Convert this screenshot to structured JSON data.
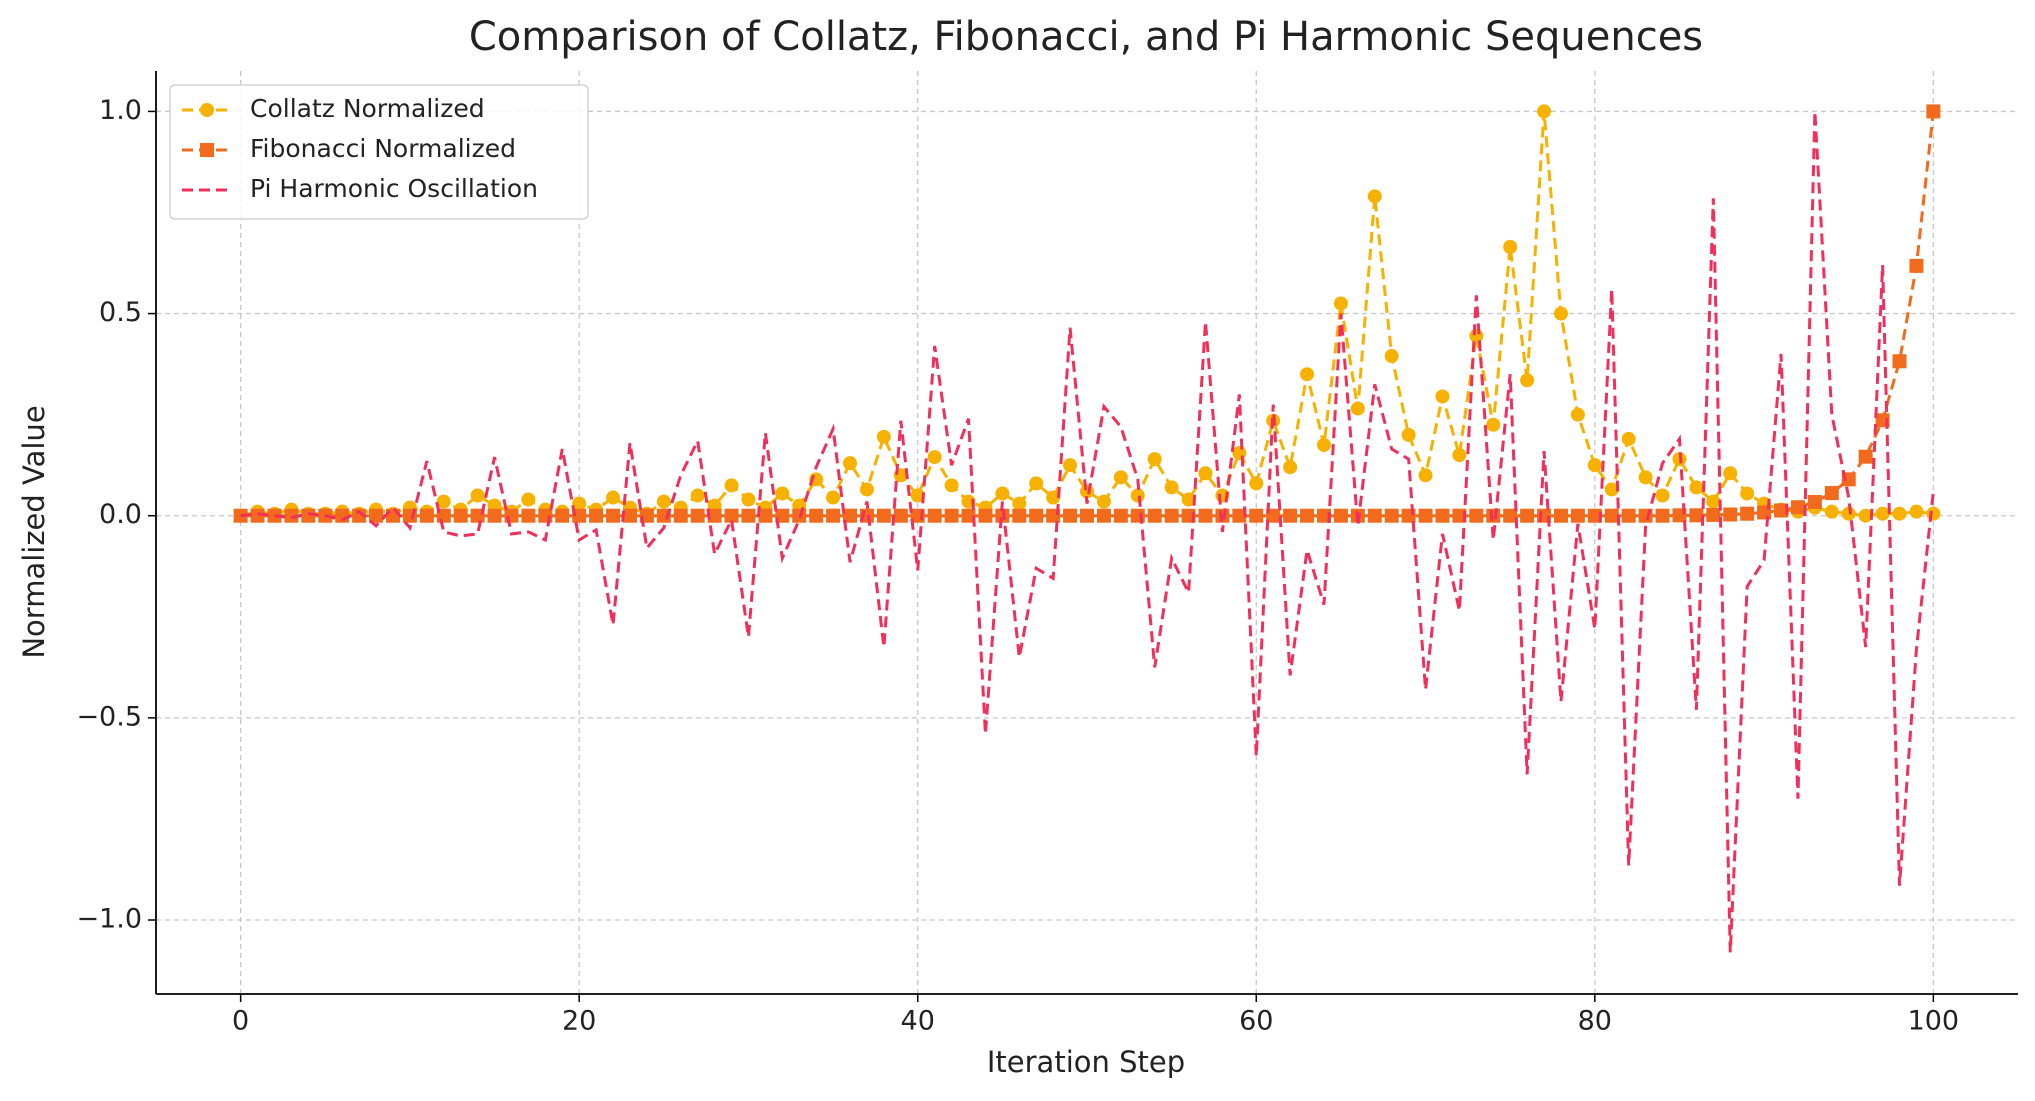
{
  "chart_data": {
    "type": "line",
    "title": "Comparison of Collatz, Fibonacci, and Pi Harmonic Sequences",
    "x_label": "Iteration Step",
    "y_label": "Normalized Value",
    "x": [
      0,
      1,
      2,
      3,
      4,
      5,
      6,
      7,
      8,
      9,
      10,
      11,
      12,
      13,
      14,
      15,
      16,
      17,
      18,
      19,
      20,
      21,
      22,
      23,
      24,
      25,
      26,
      27,
      28,
      29,
      30,
      31,
      32,
      33,
      34,
      35,
      36,
      37,
      38,
      39,
      40,
      41,
      42,
      43,
      44,
      45,
      46,
      47,
      48,
      49,
      50,
      51,
      52,
      53,
      54,
      55,
      56,
      57,
      58,
      59,
      60,
      61,
      62,
      63,
      64,
      65,
      66,
      67,
      68,
      69,
      70,
      71,
      72,
      73,
      74,
      75,
      76,
      77,
      78,
      79,
      80,
      81,
      82,
      83,
      84,
      85,
      86,
      87,
      88,
      89,
      90,
      91,
      92,
      93,
      94,
      95,
      96,
      97,
      98,
      99,
      100
    ],
    "series": [
      {
        "name": "Collatz Normalized",
        "color": "#f7b100",
        "marker": "circle",
        "values": [
          0,
          0.01,
          0.005,
          0.015,
          0.005,
          0.005,
          0.01,
          0.005,
          0.015,
          0.005,
          0.02,
          0.01,
          0.035,
          0.015,
          0.05,
          0.025,
          0.01,
          0.04,
          0.015,
          0.01,
          0.03,
          0.015,
          0.045,
          0.02,
          0.005,
          0.035,
          0.02,
          0.05,
          0.025,
          0.075,
          0.04,
          0.02,
          0.055,
          0.025,
          0.09,
          0.045,
          0.13,
          0.065,
          0.195,
          0.1,
          0.05,
          0.145,
          0.075,
          0.035,
          0.02,
          0.055,
          0.03,
          0.08,
          0.045,
          0.125,
          0.06,
          0.035,
          0.095,
          0.05,
          0.14,
          0.07,
          0.04,
          0.105,
          0.05,
          0.155,
          0.08,
          0.235,
          0.12,
          0.35,
          0.175,
          0.525,
          0.265,
          0.79,
          0.395,
          0.2,
          0.1,
          0.295,
          0.15,
          0.445,
          0.225,
          0.665,
          0.335,
          1.0,
          0.5,
          0.25,
          0.125,
          0.065,
          0.19,
          0.095,
          0.05,
          0.14,
          0.07,
          0.035,
          0.105,
          0.055,
          0.03,
          0.015,
          0.01,
          0.02,
          0.01,
          0.005,
          0,
          0.005,
          0.005,
          0.01,
          0.005
        ]
      },
      {
        "name": "Fibonacci Normalized",
        "color": "#f26b1d",
        "marker": "square",
        "values": [
          0,
          0,
          0,
          0,
          0,
          0,
          0,
          0,
          0,
          0,
          0,
          0,
          0,
          0,
          0,
          0,
          0,
          0,
          0,
          0,
          0,
          0,
          0,
          0,
          0,
          0,
          0,
          0,
          0,
          0,
          0,
          0,
          0,
          0,
          0,
          0,
          0,
          0,
          0,
          0,
          0,
          0,
          0,
          0,
          0,
          0,
          0,
          0,
          0,
          0,
          0,
          0,
          0,
          0,
          0,
          0,
          0,
          0,
          0,
          0,
          0,
          0,
          0,
          0,
          0,
          0,
          0,
          0,
          0,
          0,
          0,
          0,
          0,
          0,
          0,
          0,
          0,
          0,
          0,
          0,
          0,
          0,
          0,
          0,
          0,
          0.001,
          0.001,
          0.002,
          0.003,
          0.005,
          0.008,
          0.013,
          0.021,
          0.034,
          0.056,
          0.09,
          0.146,
          0.236,
          0.382,
          0.618,
          1.0
        ]
      },
      {
        "name": "Pi Harmonic Oscillation",
        "color": "#f0305a",
        "marker": null,
        "values": [
          0,
          0.005,
          0,
          -0.005,
          0.005,
          0,
          -0.01,
          0.01,
          -0.025,
          0.02,
          -0.03,
          0.135,
          -0.04,
          -0.05,
          -0.045,
          0.145,
          -0.045,
          -0.04,
          -0.06,
          0.165,
          -0.06,
          -0.035,
          -0.27,
          0.18,
          -0.08,
          -0.03,
          0.1,
          0.185,
          -0.095,
          -0.01,
          -0.3,
          0.205,
          -0.105,
          -0.01,
          0.12,
          0.215,
          -0.115,
          0.035,
          -0.325,
          0.235,
          -0.135,
          0.42,
          0.125,
          0.24,
          -0.54,
          0.035,
          -0.35,
          -0.13,
          -0.155,
          0.465,
          0.03,
          0.27,
          0.22,
          0.09,
          -0.375,
          -0.105,
          -0.19,
          0.48,
          -0.04,
          0.3,
          -0.595,
          0.275,
          -0.395,
          -0.085,
          -0.22,
          0.5,
          -0.025,
          0.325,
          0.165,
          0.14,
          -0.43,
          -0.045,
          -0.235,
          0.545,
          -0.06,
          0.35,
          -0.64,
          0.16,
          -0.46,
          -0.02,
          -0.28,
          0.56,
          -0.865,
          -0.025,
          0.13,
          0.19,
          -0.48,
          0.785,
          -1.08,
          -0.175,
          -0.11,
          0.4,
          -0.7,
          1.0,
          0.25,
          0.045,
          -0.325,
          0.62,
          -0.915,
          -0.33,
          0.06
        ]
      }
    ],
    "xlim": [
      -5,
      105
    ],
    "ylim": [
      -1.183,
      1.1
    ],
    "xticks": [
      0,
      20,
      40,
      60,
      80,
      100
    ],
    "yticks": [
      {
        "value": -1.0,
        "label": "−1.0"
      },
      {
        "value": -0.5,
        "label": "−0.5"
      },
      {
        "value": 0.0,
        "label": "0.0"
      },
      {
        "value": 0.5,
        "label": "0.5"
      },
      {
        "value": 1.0,
        "label": "1.0"
      }
    ],
    "grid": true,
    "legend": "upper left"
  }
}
